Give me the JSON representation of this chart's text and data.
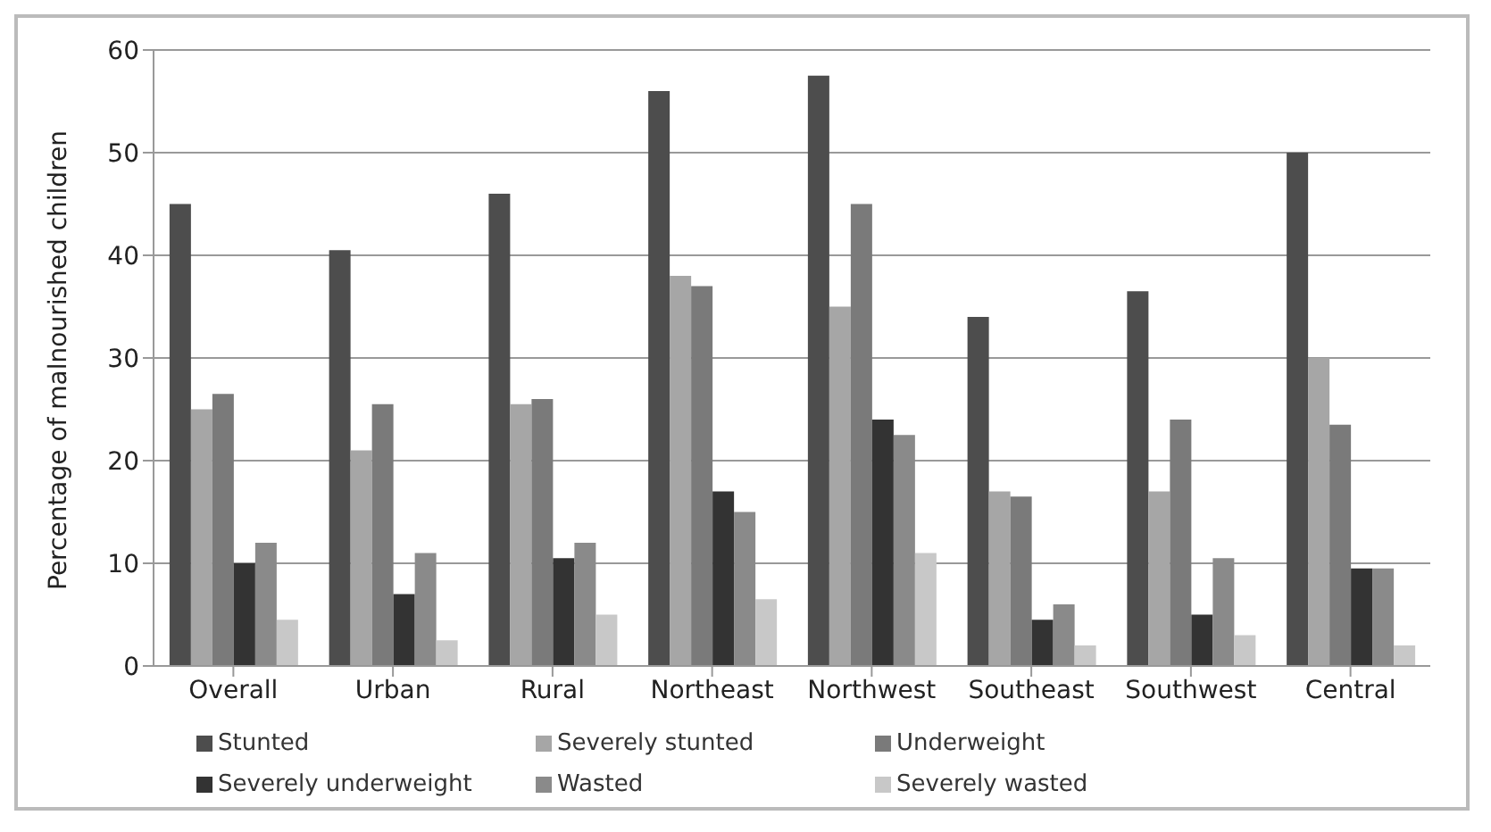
{
  "chart_data": {
    "type": "bar",
    "ylabel": "Percentage of malnourished children",
    "categories": [
      "Overall",
      "Urban",
      "Rural",
      "Northeast",
      "Northwest",
      "Southeast",
      "Southwest",
      "Central"
    ],
    "series": [
      {
        "name": "Stunted",
        "color": "#4d4d4d",
        "values": [
          45,
          40.5,
          46,
          56,
          57.5,
          34,
          36.5,
          50
        ]
      },
      {
        "name": "Severely stunted",
        "color": "#a6a6a6",
        "values": [
          25,
          21,
          25.5,
          38,
          35,
          17,
          17,
          30
        ]
      },
      {
        "name": "Underweight",
        "color": "#7a7a7a",
        "values": [
          26.5,
          25.5,
          26,
          37,
          45,
          16.5,
          24,
          23.5
        ]
      },
      {
        "name": "Severely underweight",
        "color": "#333333",
        "values": [
          10,
          7,
          10.5,
          17,
          24,
          4.5,
          5,
          9.5
        ]
      },
      {
        "name": "Wasted",
        "color": "#8a8a8a",
        "values": [
          12,
          11,
          12,
          15,
          22.5,
          6,
          10.5,
          9.5
        ]
      },
      {
        "name": "Severely wasted",
        "color": "#c8c8c8",
        "values": [
          4.5,
          2.5,
          5,
          6.5,
          11,
          2,
          3,
          2
        ]
      }
    ],
    "ylim": [
      0,
      60
    ],
    "yticks": [
      0,
      10,
      20,
      30,
      40,
      50,
      60
    ],
    "grid": "y",
    "legend": "bottom"
  }
}
